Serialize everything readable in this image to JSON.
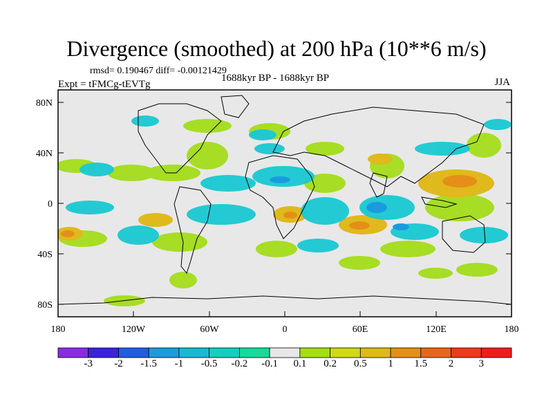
{
  "header": {
    "title": "Divergence (smoothed) at 200 hPa (10**6 m/s)",
    "stats": "rmsd= 0.190467 diff= -0.00121429",
    "experiment": "Expt = tFMCg-tEVTg",
    "period": "1688kyr BP - 1688kyr BP",
    "season": "JJA"
  },
  "map": {
    "projection": "cylindrical-equidistant",
    "lon_range": [
      -180,
      180
    ],
    "lat_range": [
      -90,
      90
    ],
    "lat_labels": [
      "80N",
      "40N",
      "0",
      "40S",
      "80S"
    ],
    "lon_labels": [
      "180",
      "120W",
      "60W",
      "0",
      "60E",
      "120E",
      "180"
    ],
    "background_color": "#e8e8e8"
  },
  "colorbar": {
    "labels": [
      "-3",
      "-2",
      "-1.5",
      "-1",
      "-0.5",
      "-0.2",
      "-0.1",
      "0.1",
      "0.2",
      "0.5",
      "1",
      "1.5",
      "2",
      "3"
    ],
    "colors": [
      "#8a2be2",
      "#3a24d8",
      "#1f5fdf",
      "#1a9be0",
      "#19b8d6",
      "#13cfc0",
      "#1bd89a",
      "#e8e8e8",
      "#a4dd1a",
      "#cfd81b",
      "#e0b91c",
      "#e58f18",
      "#e8661b",
      "#ea3c1a",
      "#e8201b"
    ]
  }
}
